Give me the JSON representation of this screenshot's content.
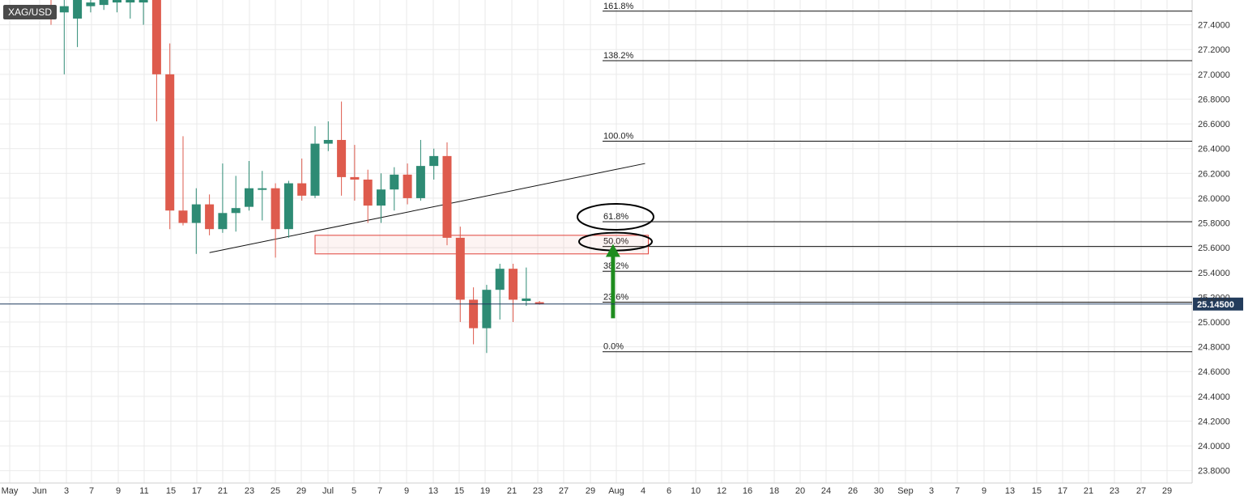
{
  "symbol": "XAG/USD",
  "colors": {
    "bull": "#2e8b74",
    "bear": "#de5b4d",
    "grid": "#eaeaea",
    "current_line": "#1f3a5f",
    "current_tag": "#233c5c",
    "zone": "#e0403a",
    "arrow": "#1e8c1e"
  },
  "chart_data": {
    "type": "candlestick",
    "title": "",
    "y_axis": {
      "min": 23.7,
      "max": 27.6,
      "ticks": [
        "23.8000",
        "24.0000",
        "24.2000",
        "24.4000",
        "24.6000",
        "24.8000",
        "25.0000",
        "25.2000",
        "25.4000",
        "25.6000",
        "25.8000",
        "26.0000",
        "26.2000",
        "26.4000",
        "26.6000",
        "26.8000",
        "27.0000",
        "27.2000",
        "27.4000"
      ]
    },
    "x_axis": {
      "labels": [
        "May",
        "Jun",
        "3",
        "7",
        "9",
        "11",
        "15",
        "17",
        "21",
        "23",
        "25",
        "29",
        "Jul",
        "5",
        "7",
        "9",
        "13",
        "15",
        "19",
        "21",
        "23",
        "27",
        "29",
        "Aug",
        "4",
        "6",
        "10",
        "12",
        "16",
        "18",
        "20",
        "24",
        "26",
        "30",
        "Sep",
        "3",
        "7",
        "9",
        "13",
        "15",
        "17",
        "21",
        "23",
        "27",
        "29"
      ]
    },
    "candles": [
      {
        "o": 27.55,
        "h": 27.62,
        "l": 27.4,
        "c": 27.48
      },
      {
        "o": 27.5,
        "h": 27.65,
        "l": 27.0,
        "c": 27.55
      },
      {
        "o": 27.45,
        "h": 27.62,
        "l": 27.22,
        "c": 27.6
      },
      {
        "o": 27.55,
        "h": 27.65,
        "l": 27.5,
        "c": 27.58
      },
      {
        "o": 27.56,
        "h": 27.64,
        "l": 27.52,
        "c": 27.6
      },
      {
        "o": 27.58,
        "h": 27.64,
        "l": 27.5,
        "c": 27.6
      },
      {
        "o": 27.58,
        "h": 27.64,
        "l": 27.45,
        "c": 27.6
      },
      {
        "o": 27.58,
        "h": 27.66,
        "l": 27.4,
        "c": 27.62
      },
      {
        "o": 27.6,
        "h": 27.66,
        "l": 26.62,
        "c": 27.0
      },
      {
        "o": 27.0,
        "h": 27.25,
        "l": 25.75,
        "c": 25.9
      },
      {
        "o": 25.9,
        "h": 26.5,
        "l": 25.78,
        "c": 25.8
      },
      {
        "o": 25.8,
        "h": 26.08,
        "l": 25.55,
        "c": 25.95
      },
      {
        "o": 25.95,
        "h": 26.03,
        "l": 25.7,
        "c": 25.75
      },
      {
        "o": 25.75,
        "h": 26.28,
        "l": 25.72,
        "c": 25.88
      },
      {
        "o": 25.88,
        "h": 26.18,
        "l": 25.73,
        "c": 25.92
      },
      {
        "o": 25.93,
        "h": 26.3,
        "l": 25.9,
        "c": 26.08
      },
      {
        "o": 26.08,
        "h": 26.22,
        "l": 25.82,
        "c": 26.08
      },
      {
        "o": 26.08,
        "h": 26.12,
        "l": 25.52,
        "c": 25.75
      },
      {
        "o": 25.75,
        "h": 26.14,
        "l": 25.68,
        "c": 26.12
      },
      {
        "o": 26.12,
        "h": 26.32,
        "l": 25.98,
        "c": 26.02
      },
      {
        "o": 26.02,
        "h": 26.58,
        "l": 26.0,
        "c": 26.44
      },
      {
        "o": 26.44,
        "h": 26.62,
        "l": 26.38,
        "c": 26.47
      },
      {
        "o": 26.47,
        "h": 26.78,
        "l": 26.02,
        "c": 26.17
      },
      {
        "o": 26.17,
        "h": 26.43,
        "l": 25.98,
        "c": 26.15
      },
      {
        "o": 26.15,
        "h": 26.23,
        "l": 25.8,
        "c": 25.94
      },
      {
        "o": 25.94,
        "h": 26.2,
        "l": 25.8,
        "c": 26.07
      },
      {
        "o": 26.07,
        "h": 26.25,
        "l": 25.9,
        "c": 26.19
      },
      {
        "o": 26.19,
        "h": 26.28,
        "l": 25.95,
        "c": 26.0
      },
      {
        "o": 26.0,
        "h": 26.47,
        "l": 25.98,
        "c": 26.26
      },
      {
        "o": 26.26,
        "h": 26.4,
        "l": 26.15,
        "c": 26.34
      },
      {
        "o": 26.34,
        "h": 26.45,
        "l": 25.62,
        "c": 25.68
      },
      {
        "o": 25.68,
        "h": 25.77,
        "l": 25.0,
        "c": 25.18
      },
      {
        "o": 25.18,
        "h": 25.28,
        "l": 24.82,
        "c": 24.95
      },
      {
        "o": 24.95,
        "h": 25.3,
        "l": 24.75,
        "c": 25.26
      },
      {
        "o": 25.26,
        "h": 25.47,
        "l": 25.02,
        "c": 25.43
      },
      {
        "o": 25.43,
        "h": 25.47,
        "l": 25.0,
        "c": 25.18
      },
      {
        "o": 25.17,
        "h": 25.44,
        "l": 25.13,
        "c": 25.19
      },
      {
        "o": 25.16,
        "h": 25.17,
        "l": 25.14,
        "c": 25.15
      }
    ],
    "current_price": "25.14500",
    "current_value": 25.145,
    "fibonacci": [
      {
        "label": "161.8%",
        "value": 27.51
      },
      {
        "label": "138.2%",
        "value": 27.11
      },
      {
        "label": "100.0%",
        "value": 26.46
      },
      {
        "label": "61.8%",
        "value": 25.81
      },
      {
        "label": "50.0%",
        "value": 25.61
      },
      {
        "label": "38.2%",
        "value": 25.41
      },
      {
        "label": "23.6%",
        "value": 25.16
      },
      {
        "label": "0.0%",
        "value": 24.76
      }
    ],
    "trendline": {
      "from_candle": 12,
      "from_value": 25.56,
      "to_candle": 45,
      "to_value": 26.28
    },
    "zone": {
      "from_candle": 21,
      "to_candle": 45,
      "top": 25.7,
      "bottom": 25.55
    },
    "arrow": {
      "candle": 43,
      "from_value": 25.03,
      "to_value": 25.63
    },
    "ellipses": [
      "61.8%",
      "50.0%"
    ]
  }
}
